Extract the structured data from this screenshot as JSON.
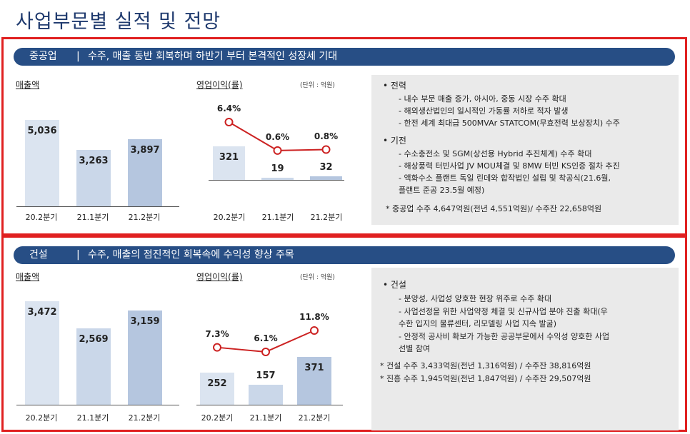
{
  "page": {
    "title": "사업부문별 실적 및 전망"
  },
  "colors": {
    "banner": "#274e85",
    "highlight_border": "#e02020",
    "line": "#cc2222",
    "panel": "#eaeaea"
  },
  "heavy": {
    "name": "중공업",
    "separator": "|",
    "headline": "수주, 매출 동반 회복하며 하반기 부터 본격적인 성장세 기대",
    "revenue_label": "매출액",
    "op_label": "영업이익(률)",
    "unit": "(단위 : 억원)",
    "categories": [
      "20.2분기",
      "21.1분기",
      "21.2분기"
    ],
    "revenue": [
      "5,036",
      "3,263",
      "3,897"
    ],
    "op_profit": [
      "321",
      "19",
      "32"
    ],
    "op_margin": [
      "6.4%",
      "0.6%",
      "0.8%"
    ],
    "bullets": [
      {
        "title": "• 전력",
        "items": [
          "- 내수 부문 매출 증가, 아시아, 중동 시장 수주 확대",
          "- 해외생산법인의 일시적인 가동률 저하로 적자 발생",
          "- 한전 세계 최대급 500MVAr STATCOM(무효전력 보상장치) 수주"
        ]
      },
      {
        "title": "• 기전",
        "items": [
          "- 수소충전소 및 SGM(상선용 Hybrid 추진체계) 수주 확대",
          "- 해상풍력 터빈사업 JV MOU체결 및 8MW 터빈 KS인증 절차 추진",
          "- 액화수소 플랜트 독일 린데와 합작법인 설립 및 착공식(21.6월,",
          "플랜트 준공 23.5월 예정)"
        ]
      }
    ],
    "notes": [
      "* 중공업 수주 4,647억원(전년 4,551억원)/ 수주잔 22,658억원"
    ]
  },
  "construction": {
    "name": "건설",
    "separator": "|",
    "headline": "수주, 매출의 점진적인 회복속에 수익성 향상 주목",
    "revenue_label": "매출액",
    "op_label": "영업이익(률)",
    "unit": "(단위 : 억원)",
    "categories": [
      "20.2분기",
      "21.1분기",
      "21.2분기"
    ],
    "revenue": [
      "3,472",
      "2,569",
      "3,159"
    ],
    "op_profit": [
      "252",
      "157",
      "371"
    ],
    "op_margin": [
      "7.3%",
      "6.1%",
      "11.8%"
    ],
    "bullets": [
      {
        "title": "• 건설",
        "items": [
          "- 분양성, 사업성 양호한 현장 위주로 수주 확대",
          "- 사업선정을 위한 사업약정 체결 및 신규사업 분야 진출 확대(우",
          "수한 입지의 물류센터, 리모델링 사업 지속 발굴)",
          "- 안정적 공사비 확보가 가능한 공공부문에서 수익성 양호한 사업",
          "선별 참여"
        ]
      }
    ],
    "notes": [
      "* 건설 수주 3,433억원(전년 1,316억원) / 수주잔 38,816억원",
      "* 진흥 수주 1,945억원(전년 1,847억원) / 수주잔 29,507억원"
    ]
  },
  "chart_data": [
    {
      "type": "bar",
      "title": "매출액",
      "categories": [
        "20.2분기",
        "21.1분기",
        "21.2분기"
      ],
      "values": [
        5036,
        3263,
        3897
      ]
    },
    {
      "type": "bar",
      "title": "영업이익(률)",
      "categories": [
        "20.2분기",
        "21.1분기",
        "21.2분기"
      ],
      "values": [
        321,
        19,
        32
      ],
      "line": {
        "values": [
          6.4,
          0.6,
          0.8
        ]
      }
    },
    {
      "type": "bar",
      "title": "매출액",
      "categories": [
        "20.2분기",
        "21.1분기",
        "21.2분기"
      ],
      "values": [
        3472,
        2569,
        3159
      ]
    },
    {
      "type": "bar",
      "title": "영업이익(률)",
      "categories": [
        "20.2분기",
        "21.1분기",
        "21.2분기"
      ],
      "values": [
        252,
        157,
        371
      ],
      "line": {
        "values": [
          7.3,
          6.1,
          11.8
        ]
      }
    }
  ]
}
